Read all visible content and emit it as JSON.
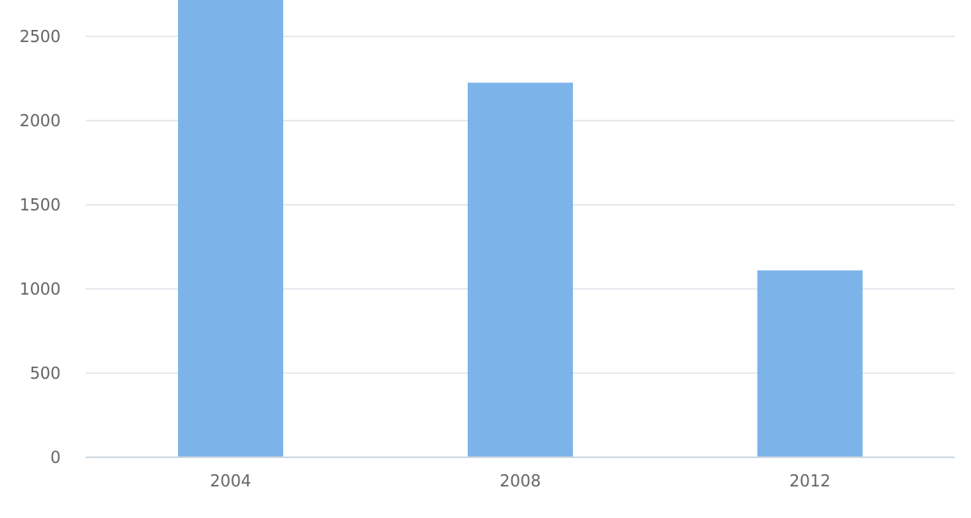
{
  "chart_data": {
    "type": "bar",
    "title": "",
    "xlabel": "",
    "ylabel": "",
    "categories": [
      "2004",
      "2008",
      "2012"
    ],
    "values": [
      2750,
      2225,
      1110
    ],
    "ylim": [
      0,
      2500
    ],
    "yticks": [
      0,
      500,
      1000,
      1500,
      2000,
      2500
    ],
    "grid": true,
    "legend": "none",
    "bar_color": "#7cb4ea",
    "grid_color": "#dde3e8",
    "axis_color": "#cfd8e0",
    "label_color": "#666666"
  }
}
